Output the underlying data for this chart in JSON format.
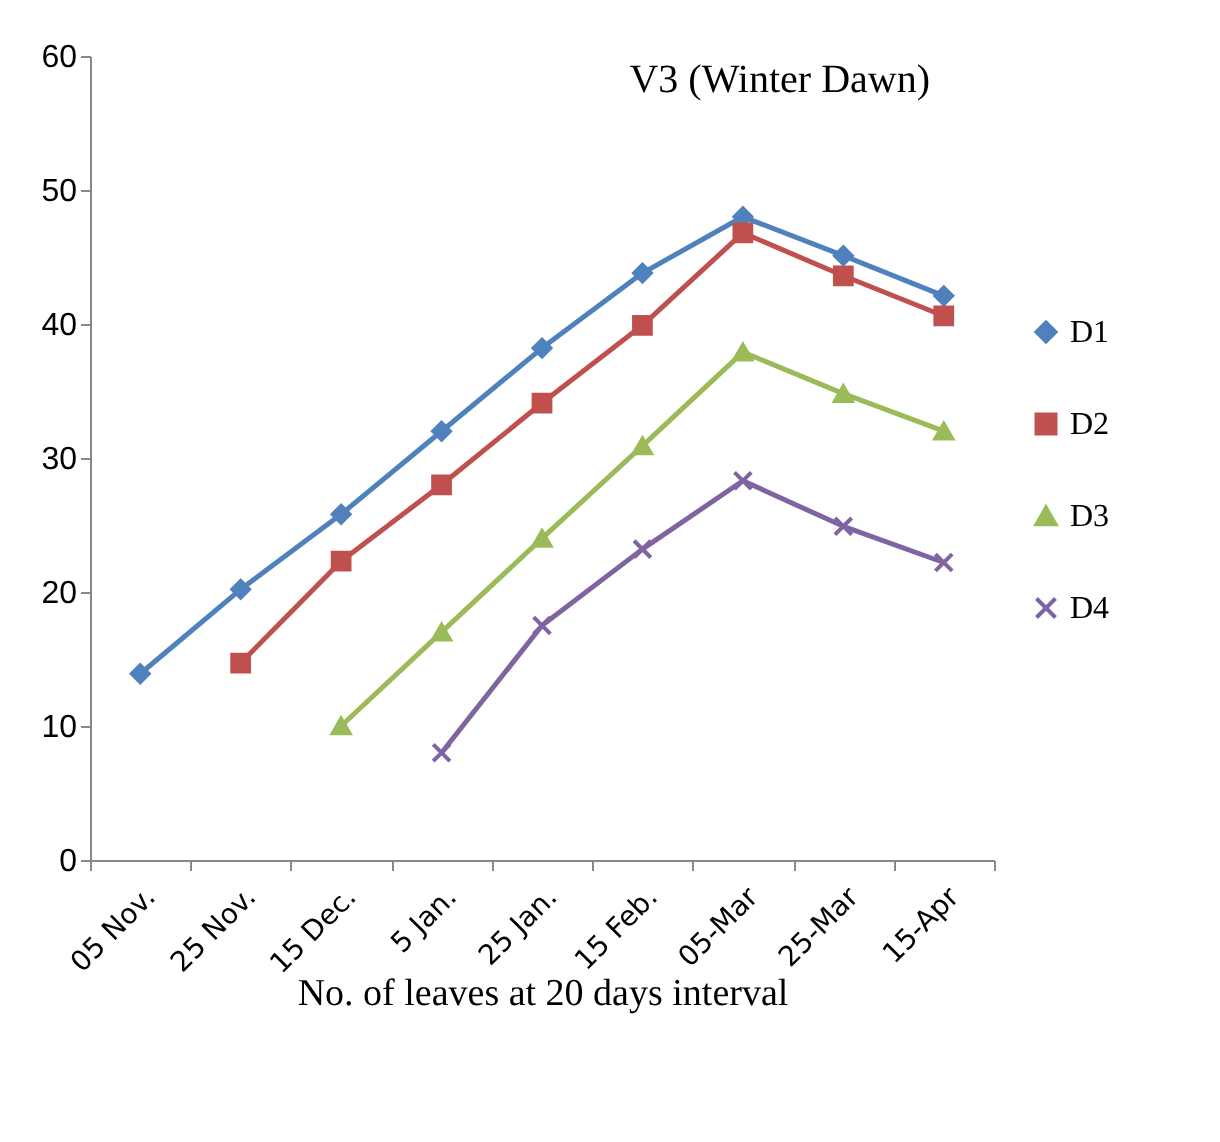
{
  "chart_data": {
    "type": "line",
    "title": "V3 (Winter Dawn)",
    "xlabel": "No. of leaves at 20 days interval",
    "categories": [
      "05 Nov.",
      "25 Nov.",
      "15 Dec.",
      "5 Jan.",
      "25 Jan.",
      "15 Feb.",
      "05-Mar",
      "25-Mar",
      "15-Apr"
    ],
    "ylim": [
      0,
      60
    ],
    "yticks": [
      0,
      10,
      20,
      30,
      40,
      50,
      60
    ],
    "grid": false,
    "legend": "right",
    "series": [
      {
        "name": "D1",
        "color": "#4f81bd",
        "marker": "diamond",
        "values": [
          13.9,
          20.2,
          25.8,
          32,
          38.2,
          43.8,
          48,
          45.1,
          42.1
        ]
      },
      {
        "name": "D2",
        "color": "#c0504d",
        "marker": "square",
        "values": [
          null,
          14.7,
          22.3,
          28,
          34.1,
          39.9,
          46.8,
          43.6,
          40.6
        ]
      },
      {
        "name": "D3",
        "color": "#9bbb59",
        "marker": "triangle",
        "values": [
          null,
          null,
          10,
          17,
          24,
          30.9,
          37.9,
          34.8,
          32
        ]
      },
      {
        "name": "D4",
        "color": "#8064a2",
        "marker": "cross",
        "values": [
          null,
          null,
          null,
          8,
          17.5,
          23.2,
          28.3,
          24.9,
          22.2
        ]
      }
    ]
  }
}
